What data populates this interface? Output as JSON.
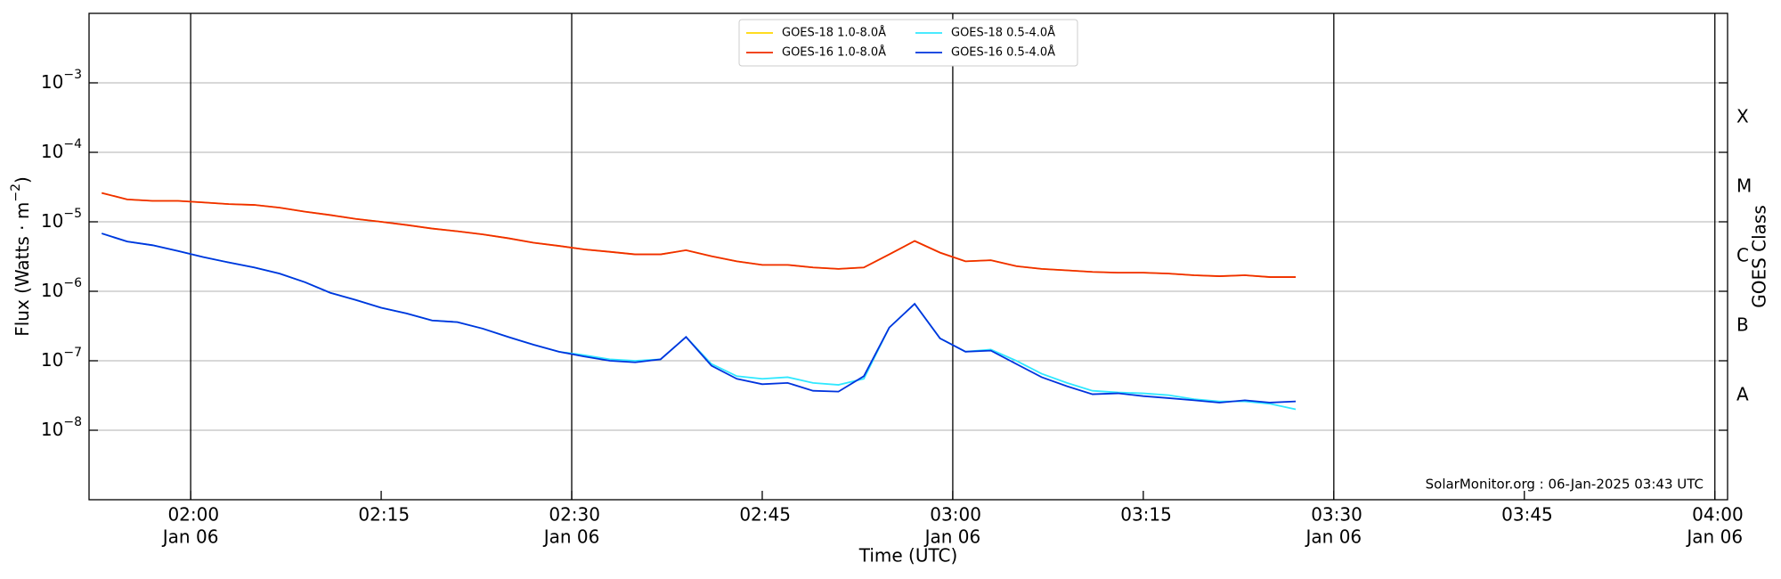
{
  "chart_data": {
    "type": "line",
    "xlabel": "Time (UTC)",
    "ylabel": {
      "text": "Flux (Watts · m",
      "exponent": "−2",
      "suffix": ")"
    },
    "y2label": "GOES Class",
    "annotation": "SolarMonitor.org : 06-Jan-2025 03:43 UTC",
    "legend": "upper center",
    "grid": true,
    "log_y": true,
    "xlim": [
      "01:52",
      "04:01"
    ],
    "xticks": [
      {
        "value": "02:00",
        "date": "Jan 06"
      },
      "02:15",
      {
        "value": "02:30",
        "date": "Jan 06"
      },
      "02:45",
      {
        "value": "03:00",
        "date": "Jan 06"
      },
      "03:15",
      {
        "value": "03:30",
        "date": "Jan 06"
      },
      "03:45",
      {
        "value": "04:00",
        "date": "Jan 06"
      }
    ],
    "ylim": [
      1e-09,
      0.01
    ],
    "yticks": [
      {
        "value": 1e-08,
        "label": "10",
        "exponent": "−8"
      },
      {
        "value": 1e-07,
        "label": "10",
        "exponent": "−7"
      },
      {
        "value": 1e-06,
        "label": "10",
        "exponent": "−6"
      },
      {
        "value": 1e-05,
        "label": "10",
        "exponent": "−5"
      },
      {
        "value": 0.0001,
        "label": "10",
        "exponent": "−4"
      },
      {
        "value": 0.001,
        "label": "10",
        "exponent": "−3"
      }
    ],
    "y2lim": [
      1e-09,
      0.01
    ],
    "y2ticks": [
      {
        "value": 1e-08,
        "label": "A"
      },
      {
        "value": 1e-07,
        "label": "B"
      },
      {
        "value": 1e-06,
        "label": "C"
      },
      {
        "value": 1e-05,
        "label": "M"
      },
      {
        "value": 0.0001,
        "label": "X"
      }
    ],
    "x": [
      "01:53",
      "01:55",
      "01:57",
      "01:59",
      "02:01",
      "02:03",
      "02:05",
      "02:07",
      "02:09",
      "02:11",
      "02:13",
      "02:15",
      "02:17",
      "02:19",
      "02:21",
      "02:23",
      "02:25",
      "02:27",
      "02:29",
      "02:31",
      "02:33",
      "02:35",
      "02:37",
      "02:39",
      "02:41",
      "02:43",
      "02:45",
      "02:47",
      "02:49",
      "02:51",
      "02:53",
      "02:55",
      "02:57",
      "02:59",
      "03:01",
      "03:03",
      "03:05",
      "03:07",
      "03:09",
      "03:11",
      "03:13",
      "03:15",
      "03:17",
      "03:19",
      "03:21",
      "03:23",
      "03:25",
      "03:27"
    ],
    "series": [
      {
        "name": "GOES-18 1.0-8.0Å",
        "color": "#ffd700",
        "values": [
          2.6e-05,
          2.1e-05,
          2e-05,
          2e-05,
          1.9e-05,
          1.8e-05,
          1.75e-05,
          1.6e-05,
          1.4e-05,
          1.25e-05,
          1.1e-05,
          1e-05,
          9e-06,
          8e-06,
          7.3e-06,
          6.6e-06,
          5.8e-06,
          5e-06,
          4.5e-06,
          4e-06,
          3.7e-06,
          3.4e-06,
          3.4e-06,
          3.9e-06,
          3.2e-06,
          2.7e-06,
          2.4e-06,
          2.4e-06,
          2.2e-06,
          2.1e-06,
          2.2e-06,
          3.4e-06,
          5.3e-06,
          3.6e-06,
          2.7e-06,
          2.8e-06,
          2.3e-06,
          2.1e-06,
          2e-06,
          1.9e-06,
          1.85e-06,
          1.85e-06,
          1.8e-06,
          1.7e-06,
          1.65e-06,
          1.7e-06,
          1.6e-06,
          1.6e-06
        ]
      },
      {
        "name": "GOES-16 1.0-8.0Å",
        "color": "#f02c00",
        "values": [
          2.6e-05,
          2.1e-05,
          2e-05,
          2e-05,
          1.9e-05,
          1.8e-05,
          1.75e-05,
          1.6e-05,
          1.4e-05,
          1.25e-05,
          1.1e-05,
          1e-05,
          9e-06,
          8e-06,
          7.3e-06,
          6.6e-06,
          5.8e-06,
          5e-06,
          4.5e-06,
          4e-06,
          3.7e-06,
          3.4e-06,
          3.4e-06,
          3.9e-06,
          3.2e-06,
          2.7e-06,
          2.4e-06,
          2.4e-06,
          2.2e-06,
          2.1e-06,
          2.2e-06,
          3.4e-06,
          5.3e-06,
          3.6e-06,
          2.7e-06,
          2.8e-06,
          2.3e-06,
          2.1e-06,
          2e-06,
          1.9e-06,
          1.85e-06,
          1.85e-06,
          1.8e-06,
          1.7e-06,
          1.65e-06,
          1.7e-06,
          1.6e-06,
          1.6e-06
        ]
      },
      {
        "name": "GOES-18 0.5-4.0Å",
        "color": "#30e8ff",
        "values": [
          6.8e-06,
          5.2e-06,
          4.6e-06,
          3.8e-06,
          3.1e-06,
          2.6e-06,
          2.2e-06,
          1.8e-06,
          1.35e-06,
          9.5e-07,
          7.5e-07,
          5.8e-07,
          4.8e-07,
          3.8e-07,
          3.6e-07,
          2.9e-07,
          2.2e-07,
          1.7e-07,
          1.35e-07,
          1.2e-07,
          1.05e-07,
          1e-07,
          1.05e-07,
          2.2e-07,
          9e-08,
          6e-08,
          5.5e-08,
          5.8e-08,
          4.8e-08,
          4.5e-08,
          5.5e-08,
          3e-07,
          6.6e-07,
          2.1e-07,
          1.35e-07,
          1.45e-07,
          1e-07,
          6.5e-08,
          4.8e-08,
          3.7e-08,
          3.5e-08,
          3.4e-08,
          3.2e-08,
          2.8e-08,
          2.6e-08,
          2.6e-08,
          2.4e-08,
          2e-08
        ]
      },
      {
        "name": "GOES-16 0.5-4.0Å",
        "color": "#0033dd",
        "values": [
          6.8e-06,
          5.2e-06,
          4.6e-06,
          3.8e-06,
          3.1e-06,
          2.6e-06,
          2.2e-06,
          1.8e-06,
          1.35e-06,
          9.5e-07,
          7.5e-07,
          5.8e-07,
          4.8e-07,
          3.8e-07,
          3.6e-07,
          2.9e-07,
          2.2e-07,
          1.7e-07,
          1.35e-07,
          1.15e-07,
          1e-07,
          9.5e-08,
          1.05e-07,
          2.2e-07,
          8.5e-08,
          5.5e-08,
          4.6e-08,
          4.8e-08,
          3.7e-08,
          3.6e-08,
          6e-08,
          3e-07,
          6.6e-07,
          2.1e-07,
          1.35e-07,
          1.4e-07,
          9e-08,
          5.8e-08,
          4.3e-08,
          3.3e-08,
          3.4e-08,
          3.1e-08,
          2.9e-08,
          2.7e-08,
          2.5e-08,
          2.7e-08,
          2.5e-08,
          2.6e-08
        ]
      }
    ]
  }
}
